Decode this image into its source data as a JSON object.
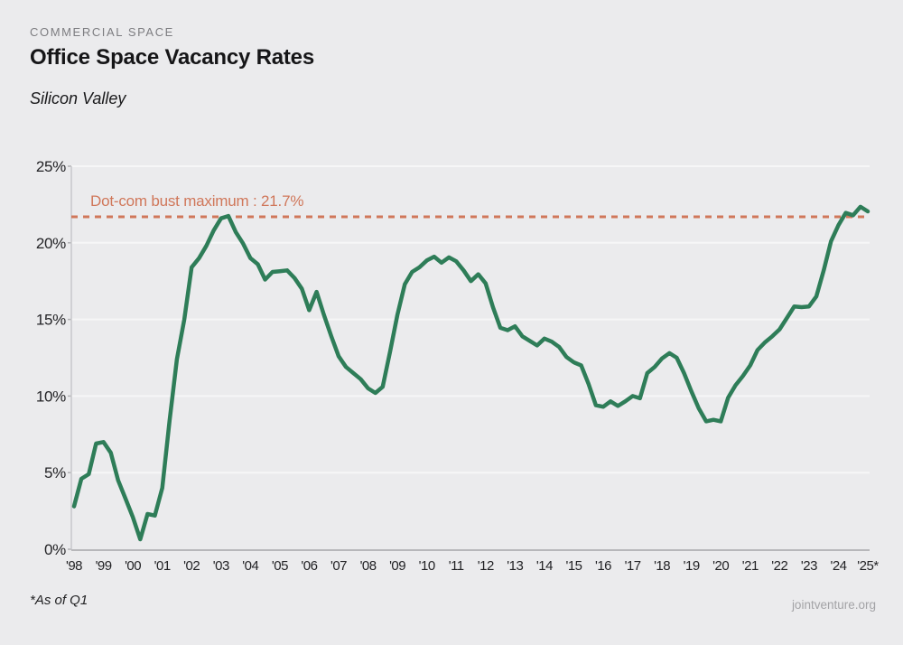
{
  "header": {
    "eyebrow": "COMMERCIAL SPACE",
    "title": "Office Space Vacancy Rates",
    "subtitle": "Silicon Valley"
  },
  "footer": {
    "note": "*As of Q1",
    "source": "jointventure.org"
  },
  "colors": {
    "background": "#ebebed",
    "line": "#2E7D58",
    "accent": "#D0775A",
    "grid": "#f6f6f7",
    "axis_bottom": "#b7b7ba",
    "axis_left": "#c8c8cb",
    "tick": "#b2b2b5",
    "text": "#232326",
    "muted": "#7d7d81"
  },
  "chart_data": {
    "type": "line",
    "title": "Office Space Vacancy Rates",
    "subtitle": "Silicon Valley",
    "category_label": "COMMERCIAL SPACE",
    "unit": "percent",
    "frequency": "quarterly",
    "x_start": "1998 Q1",
    "x_end": "2025 Q1",
    "grid": true,
    "legend": false,
    "ylim": [
      0,
      25
    ],
    "y_tick_labels": [
      "0%",
      "5%",
      "10%",
      "15%",
      "20%",
      "25%"
    ],
    "y_tick_values": [
      0,
      5,
      10,
      15,
      20,
      25
    ],
    "x_tick_labels": [
      "'98",
      "'99",
      "'00",
      "'01",
      "'02",
      "'03",
      "'04",
      "'05",
      "'06",
      "'07",
      "'08",
      "'09",
      "'10",
      "'11",
      "'12",
      "'13",
      "'14",
      "'15",
      "'16",
      "'17",
      "'18",
      "'19",
      "'20",
      "'21",
      "'22",
      "'23",
      "'24",
      "'25*"
    ],
    "reference_line": {
      "label": "Dot-com bust maximum : 21.7%",
      "value": 21.7,
      "style": "dashed"
    },
    "series": [
      {
        "name": "Office space vacancy rate",
        "values": [
          2.8,
          4.6,
          4.9,
          6.9,
          7.0,
          6.3,
          4.5,
          3.3,
          2.1,
          0.65,
          2.3,
          2.2,
          4.0,
          8.4,
          12.4,
          15.0,
          18.4,
          19.0,
          19.8,
          20.8,
          21.6,
          21.75,
          20.7,
          19.95,
          19.0,
          18.6,
          17.6,
          18.1,
          18.15,
          18.2,
          17.7,
          17.0,
          15.6,
          16.8,
          15.3,
          13.9,
          12.6,
          11.9,
          11.5,
          11.1,
          10.5,
          10.2,
          10.6,
          12.9,
          15.3,
          17.3,
          18.1,
          18.4,
          18.85,
          19.1,
          18.7,
          19.05,
          18.8,
          18.2,
          17.5,
          17.95,
          17.35,
          15.8,
          14.45,
          14.3,
          14.55,
          13.9,
          13.6,
          13.3,
          13.75,
          13.55,
          13.2,
          12.55,
          12.2,
          12.0,
          10.8,
          9.4,
          9.3,
          9.65,
          9.35,
          9.65,
          10.0,
          9.85,
          11.5,
          11.9,
          12.45,
          12.8,
          12.5,
          11.5,
          10.3,
          9.2,
          8.35,
          8.45,
          8.35,
          9.9,
          10.7,
          11.3,
          12.0,
          13.0,
          13.5,
          13.9,
          14.35,
          15.1,
          15.85,
          15.8,
          15.85,
          16.5,
          18.2,
          20.1,
          21.15,
          21.95,
          21.8,
          22.35,
          22.05
        ]
      }
    ],
    "footnote": "*As of Q1",
    "source": "jointventure.org"
  }
}
